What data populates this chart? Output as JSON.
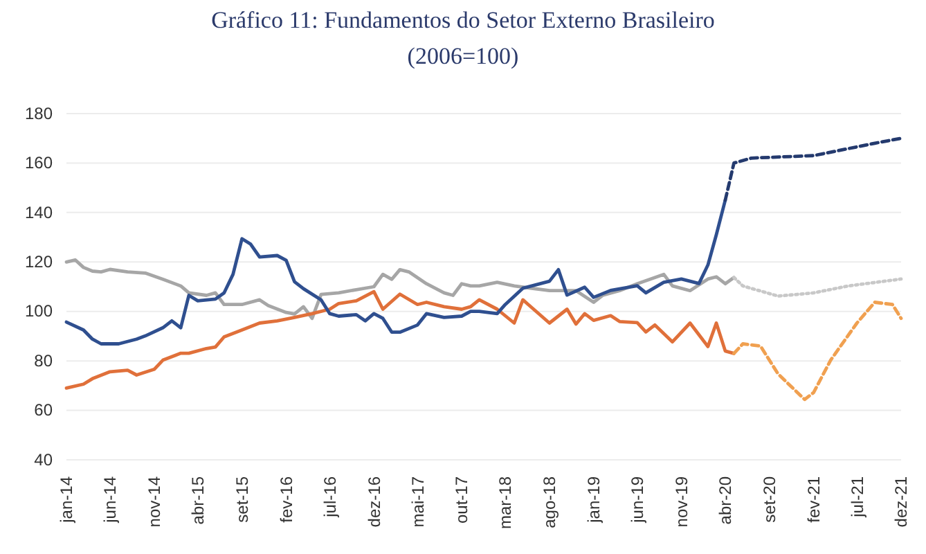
{
  "chart_data": {
    "type": "line",
    "title": "Gráfico 11: Fundamentos do Setor Externo Brasileiro",
    "subtitle": "(2006=100)",
    "xlim": [
      "2014-01",
      "2021-12"
    ],
    "xticks": [
      {
        "value": "2014-01",
        "label": "jan-14"
      },
      {
        "value": "2014-06",
        "label": "jun-14"
      },
      {
        "value": "2014-11",
        "label": "nov-14"
      },
      {
        "value": "2015-04",
        "label": "abr-15"
      },
      {
        "value": "2015-09",
        "label": "set-15"
      },
      {
        "value": "2016-02",
        "label": "fev-16"
      },
      {
        "value": "2016-07",
        "label": "jul-16"
      },
      {
        "value": "2016-12",
        "label": "dez-16"
      },
      {
        "value": "2017-05",
        "label": "mai-17"
      },
      {
        "value": "2017-10",
        "label": "out-17"
      },
      {
        "value": "2018-03",
        "label": "mar-18"
      },
      {
        "value": "2018-08",
        "label": "ago-18"
      },
      {
        "value": "2019-01",
        "label": "jan-19"
      },
      {
        "value": "2019-06",
        "label": "jun-19"
      },
      {
        "value": "2019-11",
        "label": "nov-19"
      },
      {
        "value": "2020-04",
        "label": "abr-20"
      },
      {
        "value": "2020-09",
        "label": "set-20"
      },
      {
        "value": "2021-02",
        "label": "fev-21"
      },
      {
        "value": "2021-07",
        "label": "jul-21"
      },
      {
        "value": "2021-12",
        "label": "dez-21"
      }
    ],
    "ylim": [
      40,
      180
    ],
    "yticks": [
      40,
      60,
      80,
      100,
      120,
      140,
      160,
      180
    ],
    "grid": "y",
    "series": [
      {
        "color": "#a6a6a6",
        "line_style": "solid",
        "x": [
          "2014-01",
          "2014-02",
          "2014-03",
          "2014-04",
          "2014-05",
          "2014-06",
          "2014-08",
          "2014-10",
          "2014-12",
          "2015-02",
          "2015-03",
          "2015-05",
          "2015-06",
          "2015-07",
          "2015-09",
          "2015-11",
          "2015-12",
          "2016-02",
          "2016-03",
          "2016-04",
          "2016-05",
          "2016-06",
          "2016-08",
          "2016-10",
          "2016-12",
          "2017-01",
          "2017-02",
          "2017-03",
          "2017-04",
          "2017-06",
          "2017-08",
          "2017-09",
          "2017-10",
          "2017-11",
          "2017-12",
          "2018-02",
          "2018-04",
          "2018-08",
          "2018-11",
          "2019-01",
          "2019-02",
          "2019-04",
          "2019-06",
          "2019-09",
          "2019-10",
          "2019-12",
          "2020-02",
          "2020-03",
          "2020-04",
          "2020-05"
        ],
        "values": [
          120,
          120.8,
          117.8,
          116.3,
          116,
          117,
          116,
          115.5,
          113,
          110.3,
          107.5,
          106.5,
          107.5,
          102.8,
          102.8,
          104.7,
          102.4,
          99.6,
          99,
          101.9,
          97.2,
          106.9,
          107.5,
          108.8,
          110,
          115,
          113,
          116.9,
          116,
          111.2,
          107.5,
          106.5,
          111.2,
          110.3,
          110.3,
          111.8,
          110.3,
          108.4,
          108.4,
          103.7,
          106.5,
          108.4,
          111.2,
          115,
          110.3,
          108.4,
          113.1,
          114,
          111.2,
          113.7
        ]
      },
      {
        "color": "#c8c8c8",
        "line_style": "dotted",
        "x": [
          "2020-05",
          "2020-06",
          "2020-10",
          "2021-02",
          "2021-06",
          "2021-12"
        ],
        "values": [
          113.7,
          110.3,
          106.2,
          107.5,
          110.3,
          113.1
        ]
      },
      {
        "color": "#e0703a",
        "line_style": "solid",
        "x": [
          "2014-01",
          "2014-03",
          "2014-04",
          "2014-06",
          "2014-08",
          "2014-09",
          "2014-11",
          "2014-12",
          "2015-02",
          "2015-03",
          "2015-05",
          "2015-06",
          "2015-07",
          "2015-09",
          "2015-11",
          "2016-01",
          "2016-03",
          "2016-05",
          "2016-07",
          "2016-08",
          "2016-10",
          "2016-12",
          "2017-01",
          "2017-03",
          "2017-05",
          "2017-06",
          "2017-08",
          "2017-10",
          "2017-11",
          "2017-12",
          "2018-02",
          "2018-04",
          "2018-05",
          "2018-08",
          "2018-10",
          "2018-11",
          "2018-12",
          "2019-01",
          "2019-03",
          "2019-04",
          "2019-06",
          "2019-07",
          "2019-08",
          "2019-10",
          "2019-12",
          "2020-02",
          "2020-03",
          "2020-04",
          "2020-05"
        ],
        "values": [
          69,
          70.6,
          72.8,
          75.6,
          76.2,
          74.3,
          76.6,
          80.3,
          83.1,
          83.1,
          85,
          85.6,
          89.7,
          92.5,
          95.3,
          96.2,
          97.6,
          99.1,
          100.9,
          103.2,
          104.3,
          108,
          100.9,
          107,
          102.8,
          103.7,
          101.9,
          100.9,
          101.9,
          104.7,
          100.9,
          95.3,
          104.7,
          95.3,
          100.9,
          94.9,
          99.1,
          96.4,
          98.3,
          95.9,
          95.5,
          91.7,
          94.5,
          87.7,
          95.3,
          85.8,
          95.3,
          84,
          83
        ]
      },
      {
        "color": "#f0a050",
        "line_style": "dashed",
        "x": [
          "2020-05",
          "2020-06",
          "2020-08",
          "2020-10",
          "2021-01",
          "2021-02",
          "2021-04",
          "2021-07",
          "2021-09",
          "2021-11",
          "2021-12"
        ],
        "values": [
          83,
          86.9,
          86,
          74.7,
          64.4,
          67.2,
          80.3,
          95.3,
          103.7,
          102.8,
          97.2
        ]
      },
      {
        "color": "#2f4f8f",
        "line_style": "solid",
        "x": [
          "2014-01",
          "2014-03",
          "2014-04",
          "2014-05",
          "2014-07",
          "2014-09",
          "2014-10",
          "2014-12",
          "2015-01",
          "2015-02",
          "2015-03",
          "2015-04",
          "2015-06",
          "2015-07",
          "2015-08",
          "2015-09",
          "2015-10",
          "2015-11",
          "2016-01",
          "2016-02",
          "2016-03",
          "2016-04",
          "2016-06",
          "2016-07",
          "2016-08",
          "2016-10",
          "2016-11",
          "2016-12",
          "2017-01",
          "2017-02",
          "2017-03",
          "2017-05",
          "2017-06",
          "2017-08",
          "2017-10",
          "2017-11",
          "2017-12",
          "2018-02",
          "2018-03",
          "2018-05",
          "2018-08",
          "2018-09",
          "2018-10",
          "2018-12",
          "2019-01",
          "2019-03",
          "2019-06",
          "2019-07",
          "2019-09",
          "2019-11",
          "2020-01",
          "2020-02",
          "2020-03",
          "2020-04"
        ],
        "values": [
          95.7,
          92.5,
          88.8,
          86.9,
          86.9,
          88.8,
          90.1,
          93.4,
          96.2,
          93.4,
          106.5,
          104.3,
          105,
          107.5,
          115,
          129.4,
          127.2,
          122,
          122.6,
          120.7,
          112,
          109.2,
          104.7,
          99.1,
          98.1,
          98.7,
          96.2,
          99.1,
          97.2,
          91.6,
          91.6,
          94.5,
          99.1,
          97.6,
          98.1,
          100,
          100,
          99.1,
          102.8,
          109.4,
          112.2,
          116.9,
          106.6,
          109.8,
          105.7,
          108.5,
          110.4,
          107.5,
          111.8,
          113.1,
          111.3,
          118.8,
          131,
          145
        ]
      },
      {
        "color": "#243a6e",
        "line_style": "dashed",
        "x": [
          "2020-04",
          "2020-05",
          "2020-07",
          "2021-02",
          "2021-09",
          "2021-12"
        ],
        "values": [
          145,
          160,
          162,
          163,
          168,
          170
        ]
      }
    ]
  }
}
